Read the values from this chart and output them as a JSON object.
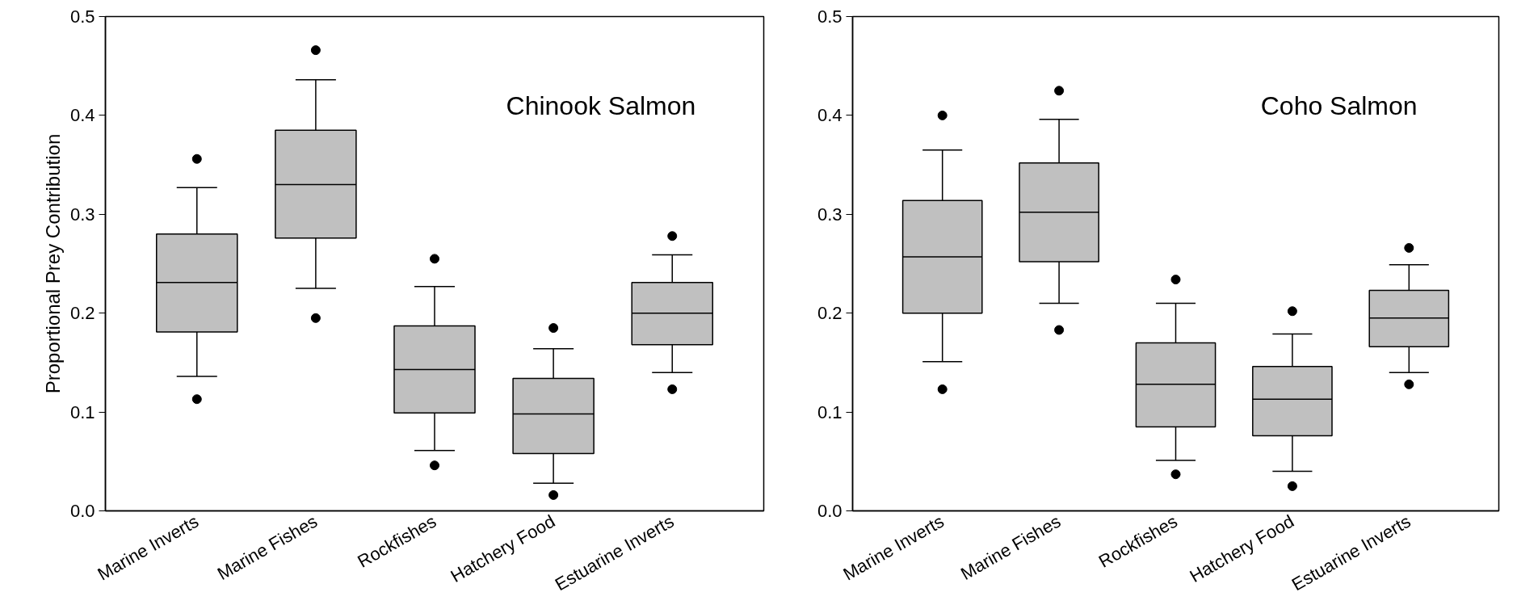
{
  "chart_data": [
    {
      "type": "box",
      "title": "Chinook Salmon",
      "ylabel": "Proportional Prey Contribution",
      "categories": [
        "Marine Inverts",
        "Marine Fishes",
        "Rockfishes",
        "Hatchery Food",
        "Estuarine Inverts"
      ],
      "color": "#c0c0c0",
      "ylim": [
        0,
        0.5
      ],
      "yticks": [
        "0.0",
        0.1,
        0.2,
        0.3,
        0.4,
        0.5
      ],
      "grid": false,
      "boxes": [
        {
          "low": 0.136,
          "q1": 0.181,
          "median": 0.231,
          "q3": 0.28,
          "high": 0.327,
          "outliers": [
            0.356,
            0.113
          ]
        },
        {
          "low": 0.225,
          "q1": 0.276,
          "median": 0.33,
          "q3": 0.385,
          "high": 0.436,
          "outliers": [
            0.466,
            0.195
          ]
        },
        {
          "low": 0.061,
          "q1": 0.099,
          "median": 0.143,
          "q3": 0.187,
          "high": 0.227,
          "outliers": [
            0.255,
            0.046
          ]
        },
        {
          "low": 0.028,
          "q1": 0.058,
          "median": 0.098,
          "q3": 0.134,
          "high": 0.164,
          "outliers": [
            0.185,
            0.016
          ]
        },
        {
          "low": 0.14,
          "q1": 0.168,
          "median": 0.2,
          "q3": 0.231,
          "high": 0.259,
          "outliers": [
            0.278,
            0.123
          ]
        }
      ]
    },
    {
      "type": "box",
      "title": "Coho Salmon",
      "categories": [
        "Marine Inverts",
        "Marine Fishes",
        "Rockfishes",
        "Hatchery Food",
        "Estuarine Inverts"
      ],
      "color": "#c0c0c0",
      "ylim": [
        0,
        0.5
      ],
      "yticks": [
        "0.0",
        0.1,
        0.2,
        0.3,
        0.4,
        0.5
      ],
      "grid": false,
      "boxes": [
        {
          "low": 0.151,
          "q1": 0.2,
          "median": 0.257,
          "q3": 0.314,
          "high": 0.365,
          "outliers": [
            0.4,
            0.123
          ]
        },
        {
          "low": 0.21,
          "q1": 0.252,
          "median": 0.302,
          "q3": 0.352,
          "high": 0.396,
          "outliers": [
            0.425,
            0.183
          ]
        },
        {
          "low": 0.051,
          "q1": 0.085,
          "median": 0.128,
          "q3": 0.17,
          "high": 0.21,
          "outliers": [
            0.234,
            0.037
          ]
        },
        {
          "low": 0.04,
          "q1": 0.076,
          "median": 0.113,
          "q3": 0.146,
          "high": 0.179,
          "outliers": [
            0.202,
            0.025
          ]
        },
        {
          "low": 0.14,
          "q1": 0.166,
          "median": 0.195,
          "q3": 0.223,
          "high": 0.249,
          "outliers": [
            0.266,
            0.128
          ]
        }
      ]
    }
  ]
}
